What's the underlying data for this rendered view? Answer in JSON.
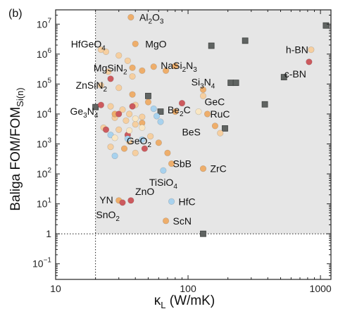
{
  "chart_data": {
    "type": "scatter",
    "panel_label": "(b)",
    "xlabel": {
      "main": "κ",
      "sub": "L",
      "rest": " (W/mK)"
    },
    "ylabel": {
      "pre": "Baliga FOM/FOM",
      "sub": "Si(n)"
    },
    "xscale": "log",
    "yscale": "log",
    "xlim": [
      10,
      1200
    ],
    "ylim": [
      0.03,
      30000000
    ],
    "x_ticks": [
      {
        "value": 10,
        "label": "10"
      },
      {
        "value": 100,
        "label": "100"
      },
      {
        "value": 1000,
        "label": "1000"
      }
    ],
    "y_ticks": [
      {
        "value": 0.1,
        "base": "10",
        "exp": "−1"
      },
      {
        "value": 1,
        "base": "1",
        "exp": ""
      },
      {
        "value": 10,
        "base": "10",
        "exp": "1"
      },
      {
        "value": 100,
        "base": "10",
        "exp": "2"
      },
      {
        "value": 1000,
        "base": "10",
        "exp": "3"
      },
      {
        "value": 10000,
        "base": "10",
        "exp": "4"
      },
      {
        "value": 100000,
        "base": "10",
        "exp": "5"
      },
      {
        "value": 1000000,
        "base": "10",
        "exp": "6"
      },
      {
        "value": 10000000,
        "base": "10",
        "exp": "7"
      }
    ],
    "thresholds": {
      "x": 20,
      "y": 1
    },
    "shaded_region": "x > 20 and y > 1",
    "colors": {
      "shade": "#e6e6e6",
      "square": "#606462",
      "square_edge": "#3f4240",
      "peach": "#f6cfa0",
      "orange": "#eeae6b",
      "red": "#cc5a5e",
      "blue": "#a8d2ee",
      "pale": "#f9e7c4"
    },
    "series": [
      {
        "marker": "square",
        "color_key": "square",
        "points": [
          [
            1100,
            9000000
          ],
          [
            270,
            2800000
          ],
          [
            150,
            1900000
          ],
          [
            210,
            110000
          ],
          [
            230,
            110000
          ],
          [
            530,
            170000
          ],
          [
            380,
            21000
          ],
          [
            190,
            3300
          ],
          [
            50,
            40000
          ],
          [
            20,
            17000
          ],
          [
            62,
            12000
          ],
          [
            130,
            1
          ]
        ]
      },
      {
        "marker": "circle",
        "color_key": "peach",
        "points": [
          [
            22,
            1400000
          ],
          [
            24,
            1200000
          ],
          [
            30,
            900000
          ],
          [
            35,
            600000
          ],
          [
            25,
            260000
          ],
          [
            38,
            180000
          ],
          [
            22,
            90000
          ],
          [
            30,
            75000
          ],
          [
            40,
            20000
          ],
          [
            26,
            18000
          ],
          [
            32,
            14000
          ],
          [
            36,
            10000
          ],
          [
            28,
            7500
          ],
          [
            45,
            8000
          ],
          [
            34,
            6000
          ],
          [
            40,
            4500
          ],
          [
            23,
            3500
          ],
          [
            30,
            3000
          ],
          [
            36,
            1200
          ],
          [
            52,
            1800
          ],
          [
            26,
            800
          ],
          [
            40,
            500
          ],
          [
            130,
            40000
          ],
          [
            175,
            2300
          ],
          [
            850,
            1400000
          ]
        ]
      },
      {
        "marker": "circle",
        "color_key": "orange",
        "points": [
          [
            37,
            17000000
          ],
          [
            40,
            2200000
          ],
          [
            45,
            280000
          ],
          [
            38,
            350000
          ],
          [
            55,
            380000
          ],
          [
            68,
            280000
          ],
          [
            80,
            400000
          ],
          [
            130,
            65000
          ],
          [
            38,
            45000
          ],
          [
            50,
            25000
          ],
          [
            80,
            12000
          ],
          [
            140,
            10000
          ],
          [
            160,
            4000
          ],
          [
            28,
            10000
          ],
          [
            45,
            5000
          ],
          [
            33,
            700
          ],
          [
            60,
            1100
          ],
          [
            30,
            13
          ],
          [
            68,
            2.7
          ],
          [
            130,
            150
          ],
          [
            70,
            500
          ],
          [
            75,
            220
          ]
        ]
      },
      {
        "marker": "circle",
        "color_key": "red",
        "points": [
          [
            26,
            150000
          ],
          [
            22,
            20000
          ],
          [
            30,
            10000
          ],
          [
            38,
            18000
          ],
          [
            90,
            23000
          ],
          [
            24,
            3000
          ],
          [
            35,
            2000
          ],
          [
            47,
            700
          ],
          [
            32,
            11
          ],
          [
            37,
            13
          ],
          [
            820,
            550000
          ]
        ]
      },
      {
        "marker": "circle",
        "color_key": "blue",
        "points": [
          [
            55,
            15000
          ],
          [
            58,
            8500
          ],
          [
            62,
            5500
          ],
          [
            26,
            2000
          ],
          [
            28,
            400
          ],
          [
            35,
            1500
          ],
          [
            65,
            130
          ],
          [
            75,
            12
          ],
          [
            45,
            1400
          ]
        ]
      },
      {
        "marker": "circle",
        "color_key": "pale",
        "points": [
          [
            40,
            7000
          ],
          [
            45,
            3500
          ],
          [
            36,
            2800
          ],
          [
            28,
            1600
          ],
          [
            120,
            12000
          ]
        ]
      }
    ],
    "annotations": [
      {
        "parts": [
          [
            "Al",
            ""
          ],
          [
            "2",
            "sub"
          ],
          [
            "O",
            ""
          ],
          [
            "3",
            "sub"
          ]
        ],
        "x": 38,
        "y": 17000000,
        "dx": 10,
        "dy": 5
      },
      {
        "parts": [
          [
            "HfGeO",
            ""
          ],
          [
            "4",
            "sub"
          ]
        ],
        "x": 25,
        "y": 2200000,
        "dx": -4,
        "dy": 5,
        "anchor": "end"
      },
      {
        "parts": [
          [
            "MgO",
            ""
          ]
        ],
        "x": 42,
        "y": 2200000,
        "dx": 10,
        "dy": 5
      },
      {
        "parts": [
          [
            "MgSiN",
            ""
          ],
          [
            "2",
            "sub"
          ]
        ],
        "x": 33,
        "y": 350000,
        "dx": 4,
        "dy": 5,
        "anchor": "end"
      },
      {
        "parts": [
          [
            "NaSi",
            ""
          ],
          [
            "2",
            "sub"
          ],
          [
            "N",
            ""
          ],
          [
            "3",
            "sub"
          ]
        ],
        "x": 55,
        "y": 420000,
        "dx": 10,
        "dy": 5
      },
      {
        "parts": [
          [
            "h-BN",
            ""
          ]
        ],
        "x": 850,
        "y": 1400000,
        "dx": -4,
        "dy": 5,
        "anchor": "end"
      },
      {
        "parts": [
          [
            "c-BN",
            ""
          ]
        ],
        "x": 820,
        "y": 550000,
        "dx": -4,
        "dy": 22,
        "anchor": "end"
      },
      {
        "parts": [
          [
            "Si",
            ""
          ],
          [
            "3",
            "sub"
          ],
          [
            "N",
            ""
          ],
          [
            "4",
            "sub"
          ]
        ],
        "x": 130,
        "y": 65000,
        "dx": 0,
        "dy": -6,
        "anchor": "middle"
      },
      {
        "parts": [
          [
            "ZnSiN",
            ""
          ],
          [
            "2",
            "sub"
          ]
        ],
        "x": 26,
        "y": 150000,
        "dx": -5,
        "dy": 14,
        "anchor": "end"
      },
      {
        "parts": [
          [
            "Ge",
            ""
          ],
          [
            "3",
            "sub"
          ],
          [
            "N",
            ""
          ],
          [
            "4",
            "sub"
          ]
        ],
        "x": 22,
        "y": 20000,
        "dx": -4,
        "dy": 14,
        "anchor": "end"
      },
      {
        "parts": [
          [
            "Be",
            ""
          ],
          [
            "2",
            "sub"
          ],
          [
            "C",
            ""
          ]
        ],
        "x": 70,
        "y": 14000,
        "dx": 0,
        "dy": 5
      },
      {
        "parts": [
          [
            "GeC",
            ""
          ]
        ],
        "x": 130,
        "y": 26000,
        "dx": 2,
        "dy": 5
      },
      {
        "parts": [
          [
            "RuC",
            ""
          ]
        ],
        "x": 140,
        "y": 10000,
        "dx": 4,
        "dy": 5
      },
      {
        "parts": [
          [
            "GeO",
            ""
          ],
          [
            "2",
            "sub"
          ]
        ],
        "x": 47,
        "y": 700,
        "dx": -8,
        "dy": -6,
        "anchor": "middle"
      },
      {
        "parts": [
          [
            "BeS",
            ""
          ]
        ],
        "x": 90,
        "y": 2500,
        "dx": 0,
        "dy": 5
      },
      {
        "parts": [
          [
            "SbB",
            ""
          ]
        ],
        "x": 75,
        "y": 220,
        "dx": 2,
        "dy": 5
      },
      {
        "parts": [
          [
            "ZrC",
            ""
          ]
        ],
        "x": 130,
        "y": 150,
        "dx": 10,
        "dy": 5
      },
      {
        "parts": [
          [
            "TiSiO",
            ""
          ],
          [
            "4",
            "sub"
          ]
        ],
        "x": 65,
        "y": 130,
        "dx": 0,
        "dy": 22,
        "anchor": "middle"
      },
      {
        "parts": [
          [
            "YN",
            ""
          ]
        ],
        "x": 30,
        "y": 13,
        "dx": -8,
        "dy": 4,
        "anchor": "end"
      },
      {
        "parts": [
          [
            "ZnO",
            ""
          ]
        ],
        "x": 38,
        "y": 13,
        "dx": 4,
        "dy": -8
      },
      {
        "parts": [
          [
            "SnO",
            ""
          ],
          [
            "2",
            "sub"
          ]
        ],
        "x": 32,
        "y": 11,
        "dx": -4,
        "dy": 22,
        "anchor": "end"
      },
      {
        "parts": [
          [
            "HfC",
            ""
          ]
        ],
        "x": 75,
        "y": 12,
        "dx": 10,
        "dy": 5
      },
      {
        "parts": [
          [
            "ScN",
            ""
          ]
        ],
        "x": 68,
        "y": 2.7,
        "dx": 10,
        "dy": 5
      }
    ]
  }
}
